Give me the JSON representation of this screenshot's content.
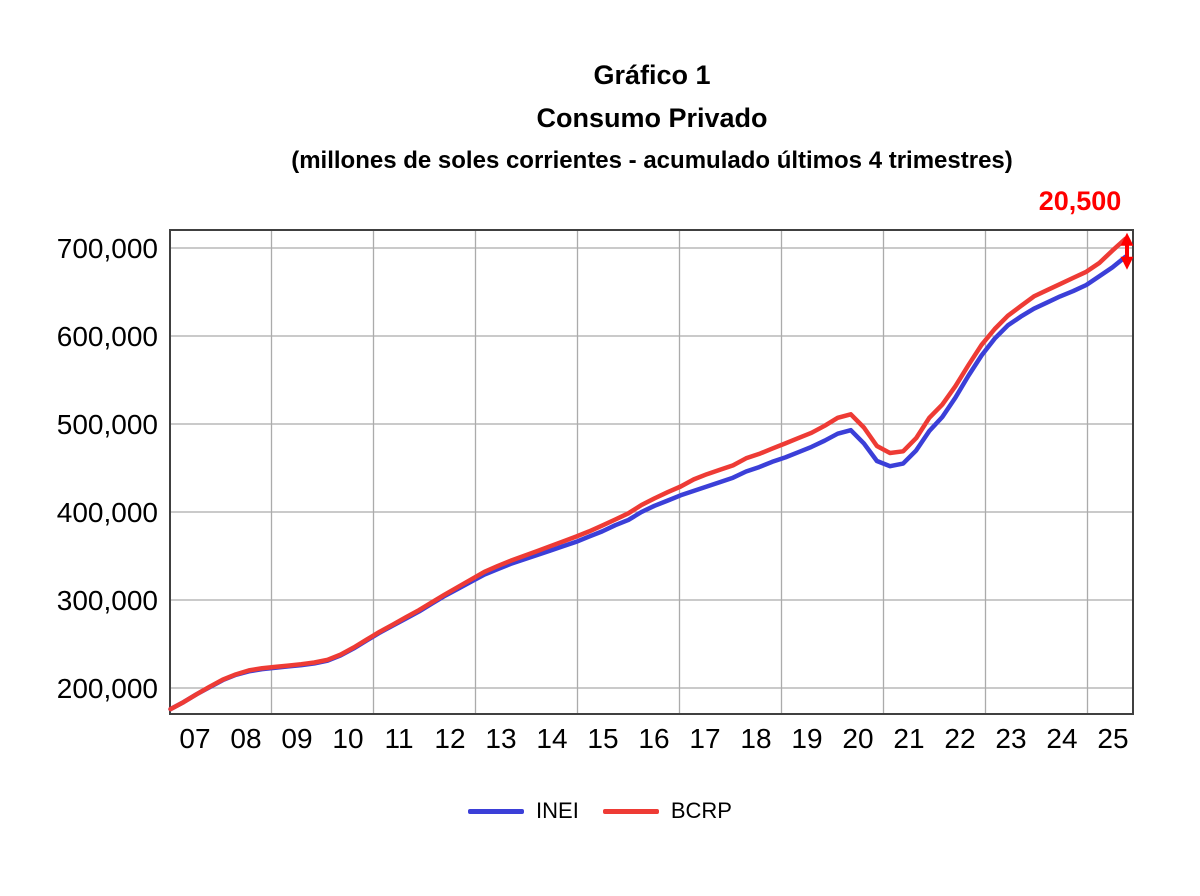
{
  "title": {
    "line1": "Gráfico 1",
    "line2": "Consumo Privado",
    "line3": "(millones de soles corrientes - acumulado últimos 4 trimestres)"
  },
  "annotation": {
    "label": "20,500",
    "color": "#FF0000"
  },
  "legend": {
    "items": [
      {
        "label": "INEI",
        "color": "#3B3FD8"
      },
      {
        "label": "BCRP",
        "color": "#EE3B35"
      }
    ]
  },
  "colors": {
    "gridline": "#ABABAB",
    "plot_border": "#404040",
    "inei_line": "#3B3FD8",
    "bcrp_line": "#EE3B35",
    "arrow": "#FF0000"
  },
  "chart_data": {
    "type": "line",
    "title": "Gráfico 1",
    "subtitle": "Consumo Privado",
    "units_note": "(millones de soles corrientes - acumulado últimos 4 trimestres)",
    "grid": true,
    "legend_position": "bottom",
    "ylim": [
      170000,
      717000
    ],
    "y_ticks": [
      {
        "label": "700,000",
        "value": 700000
      },
      {
        "label": "600,000",
        "value": 600000
      },
      {
        "label": "500,000",
        "value": 500000
      },
      {
        "label": "400,000",
        "value": 400000
      },
      {
        "label": "300,000",
        "value": 300000
      },
      {
        "label": "200,000",
        "value": 200000
      }
    ],
    "x_tick_labels": [
      "07",
      "08",
      "09",
      "10",
      "11",
      "12",
      "13",
      "14",
      "15",
      "16",
      "17",
      "18",
      "19",
      "20",
      "21",
      "22",
      "23",
      "24",
      "25"
    ],
    "x": [
      "2007Q1",
      "2007Q2",
      "2007Q3",
      "2007Q4",
      "2008Q1",
      "2008Q2",
      "2008Q3",
      "2008Q4",
      "2009Q1",
      "2009Q2",
      "2009Q3",
      "2009Q4",
      "2010Q1",
      "2010Q2",
      "2010Q3",
      "2010Q4",
      "2011Q1",
      "2011Q2",
      "2011Q3",
      "2011Q4",
      "2012Q1",
      "2012Q2",
      "2012Q3",
      "2012Q4",
      "2013Q1",
      "2013Q2",
      "2013Q3",
      "2013Q4",
      "2014Q1",
      "2014Q2",
      "2014Q3",
      "2014Q4",
      "2015Q1",
      "2015Q2",
      "2015Q3",
      "2015Q4",
      "2016Q1",
      "2016Q2",
      "2016Q3",
      "2016Q4",
      "2017Q1",
      "2017Q2",
      "2017Q3",
      "2017Q4",
      "2018Q1",
      "2018Q2",
      "2018Q3",
      "2018Q4",
      "2019Q1",
      "2019Q2",
      "2019Q3",
      "2019Q4",
      "2020Q1",
      "2020Q2",
      "2020Q3",
      "2020Q4",
      "2021Q1",
      "2021Q2",
      "2021Q3",
      "2021Q4",
      "2022Q1",
      "2022Q2",
      "2022Q3",
      "2022Q4",
      "2023Q1",
      "2023Q2",
      "2023Q3",
      "2023Q4",
      "2024Q1",
      "2024Q2",
      "2024Q3",
      "2024Q4",
      "2025Q1",
      "2025Q2"
    ],
    "series": [
      {
        "name": "INEI",
        "color": "#3B3FD8",
        "values": [
          176000,
          184000,
          193000,
          201000,
          209000,
          215000,
          219000,
          221500,
          223000,
          224500,
          226000,
          228000,
          231000,
          237000,
          245000,
          254000,
          263000,
          271000,
          279000,
          287000,
          296000,
          305000,
          313000,
          321000,
          329000,
          335000,
          341000,
          346000,
          351000,
          356000,
          361000,
          366000,
          372000,
          378000,
          385000,
          391000,
          400000,
          407000,
          413000,
          419000,
          424000,
          429000,
          434000,
          439000,
          446000,
          451000,
          457000,
          462000,
          468000,
          474000,
          481000,
          489000,
          493000,
          478000,
          458000,
          452000,
          455000,
          470000,
          492000,
          508000,
          530000,
          555000,
          578000,
          597000,
          612000,
          622000,
          631000,
          638000,
          645000,
          651000,
          658000,
          668000,
          678000,
          690000
        ]
      },
      {
        "name": "BCRP",
        "color": "#EE3B35",
        "values": [
          176000,
          184000,
          193000,
          201500,
          209500,
          215500,
          220000,
          222500,
          224000,
          225500,
          227000,
          229000,
          232000,
          238000,
          246000,
          255000,
          264000,
          272000,
          280500,
          288500,
          297500,
          306500,
          315000,
          323500,
          332000,
          338500,
          344500,
          350000,
          355500,
          361000,
          366500,
          372000,
          378000,
          384500,
          391500,
          398500,
          408000,
          415500,
          422500,
          429000,
          437000,
          443000,
          448000,
          453000,
          461000,
          466000,
          472000,
          478000,
          484000,
          490000,
          498000,
          507000,
          511000,
          496000,
          475000,
          467000,
          469000,
          484000,
          507000,
          522000,
          543000,
          567000,
          590000,
          608000,
          623000,
          634000,
          645000,
          652000,
          659000,
          666000,
          673000,
          683000,
          697000,
          710500
        ]
      }
    ],
    "annotation": {
      "text": "20,500"
    }
  }
}
